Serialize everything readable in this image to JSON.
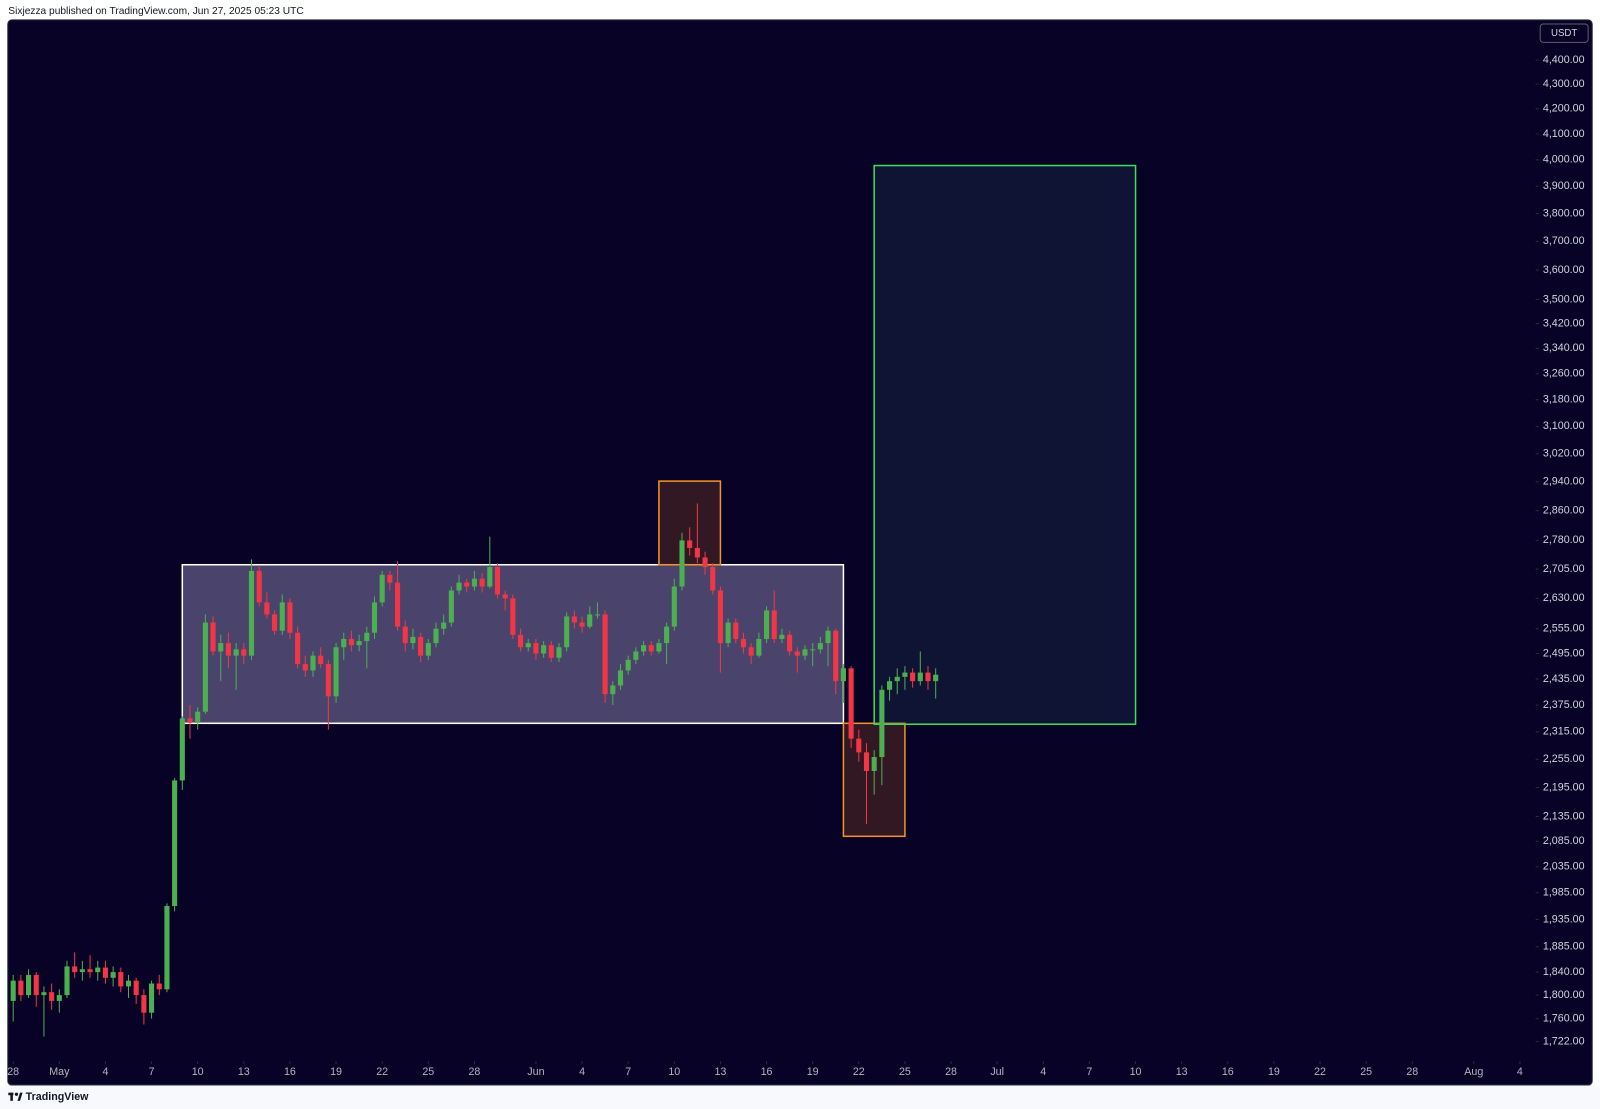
{
  "header": {
    "text": "Sixjezza published on TradingView.com, Jun 27, 2025 05:23 UTC"
  },
  "footer": {
    "brand": "TradingView"
  },
  "chart_data": {
    "type": "candlestick",
    "currency": "USDT",
    "log": true,
    "up_color": "#4caf50",
    "down_color": "#f23645",
    "ylim": [
      1690,
      4570
    ],
    "yticks": [
      {
        "value": 4400,
        "label": "4,400.00"
      },
      {
        "value": 4300,
        "label": "4,300.00"
      },
      {
        "value": 4200,
        "label": "4,200.00"
      },
      {
        "value": 4100,
        "label": "4,100.00"
      },
      {
        "value": 4000,
        "label": "4,000.00"
      },
      {
        "value": 3900,
        "label": "3,900.00"
      },
      {
        "value": 3800,
        "label": "3,800.00"
      },
      {
        "value": 3700,
        "label": "3,700.00"
      },
      {
        "value": 3600,
        "label": "3,600.00"
      },
      {
        "value": 3500,
        "label": "3,500.00"
      },
      {
        "value": 3420,
        "label": "3,420.00"
      },
      {
        "value": 3340,
        "label": "3,340.00"
      },
      {
        "value": 3260,
        "label": "3,260.00"
      },
      {
        "value": 3180,
        "label": "3,180.00"
      },
      {
        "value": 3100,
        "label": "3,100.00"
      },
      {
        "value": 3020,
        "label": "3,020.00"
      },
      {
        "value": 2940,
        "label": "2,940.00"
      },
      {
        "value": 2860,
        "label": "2,860.00"
      },
      {
        "value": 2780,
        "label": "2,780.00"
      },
      {
        "value": 2705,
        "label": "2,705.00"
      },
      {
        "value": 2630,
        "label": "2,630.00"
      },
      {
        "value": 2555,
        "label": "2,555.00"
      },
      {
        "value": 2495,
        "label": "2,495.00"
      },
      {
        "value": 2435,
        "label": "2,435.00"
      },
      {
        "value": 2375,
        "label": "2,375.00"
      },
      {
        "value": 2315,
        "label": "2,315.00"
      },
      {
        "value": 2255,
        "label": "2,255.00"
      },
      {
        "value": 2195,
        "label": "2,195.00"
      },
      {
        "value": 2135,
        "label": "2,135.00"
      },
      {
        "value": 2085,
        "label": "2,085.00"
      },
      {
        "value": 2035,
        "label": "2,035.00"
      },
      {
        "value": 1985,
        "label": "1,985.00"
      },
      {
        "value": 1935,
        "label": "1,935.00"
      },
      {
        "value": 1885,
        "label": "1,885.00"
      },
      {
        "value": 1840,
        "label": "1,840.00"
      },
      {
        "value": 1800,
        "label": "1,800.00"
      },
      {
        "value": 1760,
        "label": "1,760.00"
      },
      {
        "value": 1722,
        "label": "1,722.00"
      }
    ],
    "xlim": [
      "04-28",
      "08-05"
    ],
    "xticks": [
      {
        "value": "04-28",
        "label": "28"
      },
      {
        "value": "05-01",
        "label": "May"
      },
      {
        "value": "05-04",
        "label": "4"
      },
      {
        "value": "05-07",
        "label": "7"
      },
      {
        "value": "05-10",
        "label": "10"
      },
      {
        "value": "05-13",
        "label": "13"
      },
      {
        "value": "05-16",
        "label": "16"
      },
      {
        "value": "05-19",
        "label": "19"
      },
      {
        "value": "05-22",
        "label": "22"
      },
      {
        "value": "05-25",
        "label": "25"
      },
      {
        "value": "05-28",
        "label": "28"
      },
      {
        "value": "06-01",
        "label": "Jun"
      },
      {
        "value": "06-04",
        "label": "4"
      },
      {
        "value": "06-07",
        "label": "7"
      },
      {
        "value": "06-10",
        "label": "10"
      },
      {
        "value": "06-13",
        "label": "13"
      },
      {
        "value": "06-16",
        "label": "16"
      },
      {
        "value": "06-19",
        "label": "19"
      },
      {
        "value": "06-22",
        "label": "22"
      },
      {
        "value": "06-25",
        "label": "25"
      },
      {
        "value": "06-28",
        "label": "28"
      },
      {
        "value": "07-01",
        "label": "Jul"
      },
      {
        "value": "07-04",
        "label": "4"
      },
      {
        "value": "07-07",
        "label": "7"
      },
      {
        "value": "07-10",
        "label": "10"
      },
      {
        "value": "07-13",
        "label": "13"
      },
      {
        "value": "07-16",
        "label": "16"
      },
      {
        "value": "07-19",
        "label": "19"
      },
      {
        "value": "07-22",
        "label": "22"
      },
      {
        "value": "07-25",
        "label": "25"
      },
      {
        "value": "07-28",
        "label": "28"
      },
      {
        "value": "08-01",
        "label": "Aug"
      },
      {
        "value": "08-04",
        "label": "4"
      }
    ],
    "zones": [
      {
        "x": [
          "05-09",
          "06-21"
        ],
        "y": [
          2334,
          2716
        ],
        "color": "#ffffff",
        "fill": "rgba(185,175,225,0.38)"
      },
      {
        "x": [
          "06-09",
          "06-13"
        ],
        "y": [
          2716,
          2942
        ],
        "color": "#f0932b",
        "fill": "rgba(140,70,30,0.32)"
      },
      {
        "x": [
          "06-21",
          "06-25"
        ],
        "y": [
          2095,
          2334
        ],
        "color": "#f0932b",
        "fill": "rgba(140,70,30,0.32)"
      },
      {
        "x": [
          "06-23",
          "07-10"
        ],
        "y": [
          2332,
          3978
        ],
        "color": "#3ddc5a",
        "fill": "rgba(40,70,90,0.28)"
      }
    ],
    "candles": [
      [
        1790,
        1835,
        1755,
        1825
      ],
      [
        1825,
        1835,
        1790,
        1800
      ],
      [
        1800,
        1845,
        1795,
        1835
      ],
      [
        1835,
        1840,
        1780,
        1800
      ],
      [
        1800,
        1815,
        1730,
        1805
      ],
      [
        1805,
        1820,
        1775,
        1790
      ],
      [
        1790,
        1810,
        1770,
        1800
      ],
      [
        1800,
        1860,
        1795,
        1850
      ],
      [
        1850,
        1875,
        1830,
        1840
      ],
      [
        1840,
        1860,
        1825,
        1845
      ],
      [
        1845,
        1870,
        1830,
        1840
      ],
      [
        1840,
        1860,
        1825,
        1848
      ],
      [
        1848,
        1860,
        1820,
        1830
      ],
      [
        1830,
        1850,
        1815,
        1840
      ],
      [
        1840,
        1848,
        1805,
        1815
      ],
      [
        1815,
        1835,
        1795,
        1825
      ],
      [
        1825,
        1830,
        1785,
        1800
      ],
      [
        1800,
        1810,
        1750,
        1770
      ],
      [
        1770,
        1825,
        1760,
        1820
      ],
      [
        1820,
        1835,
        1800,
        1810
      ],
      [
        1810,
        1965,
        1805,
        1960
      ],
      [
        1960,
        2215,
        1950,
        2210
      ],
      [
        2210,
        2350,
        2190,
        2345
      ],
      [
        2345,
        2375,
        2300,
        2335
      ],
      [
        2335,
        2370,
        2320,
        2360
      ],
      [
        2360,
        2590,
        2355,
        2570
      ],
      [
        2570,
        2585,
        2490,
        2500
      ],
      [
        2500,
        2540,
        2430,
        2520
      ],
      [
        2520,
        2545,
        2460,
        2490
      ],
      [
        2490,
        2520,
        2410,
        2505
      ],
      [
        2505,
        2520,
        2470,
        2490
      ],
      [
        2490,
        2730,
        2480,
        2700
      ],
      [
        2700,
        2715,
        2610,
        2620
      ],
      [
        2620,
        2645,
        2580,
        2590
      ],
      [
        2590,
        2600,
        2540,
        2550
      ],
      [
        2550,
        2640,
        2540,
        2620
      ],
      [
        2620,
        2630,
        2530,
        2545
      ],
      [
        2545,
        2560,
        2460,
        2470
      ],
      [
        2470,
        2490,
        2440,
        2455
      ],
      [
        2455,
        2500,
        2440,
        2490
      ],
      [
        2490,
        2510,
        2460,
        2470
      ],
      [
        2470,
        2480,
        2320,
        2395
      ],
      [
        2395,
        2520,
        2380,
        2510
      ],
      [
        2510,
        2545,
        2480,
        2530
      ],
      [
        2530,
        2550,
        2500,
        2515
      ],
      [
        2515,
        2540,
        2500,
        2525
      ],
      [
        2525,
        2560,
        2460,
        2545
      ],
      [
        2545,
        2635,
        2530,
        2620
      ],
      [
        2620,
        2700,
        2610,
        2690
      ],
      [
        2690,
        2700,
        2650,
        2670
      ],
      [
        2670,
        2725,
        2550,
        2560
      ],
      [
        2560,
        2575,
        2500,
        2520
      ],
      [
        2520,
        2555,
        2505,
        2535
      ],
      [
        2535,
        2545,
        2475,
        2490
      ],
      [
        2490,
        2530,
        2480,
        2520
      ],
      [
        2520,
        2570,
        2510,
        2555
      ],
      [
        2555,
        2590,
        2540,
        2570
      ],
      [
        2570,
        2660,
        2560,
        2650
      ],
      [
        2650,
        2690,
        2640,
        2670
      ],
      [
        2670,
        2680,
        2645,
        2660
      ],
      [
        2660,
        2700,
        2650,
        2680
      ],
      [
        2680,
        2695,
        2645,
        2660
      ],
      [
        2660,
        2790,
        2655,
        2710
      ],
      [
        2710,
        2720,
        2630,
        2640
      ],
      [
        2640,
        2650,
        2600,
        2630
      ],
      [
        2630,
        2640,
        2530,
        2540
      ],
      [
        2540,
        2555,
        2500,
        2510
      ],
      [
        2510,
        2530,
        2500,
        2520
      ],
      [
        2520,
        2530,
        2480,
        2495
      ],
      [
        2495,
        2525,
        2485,
        2515
      ],
      [
        2515,
        2525,
        2475,
        2485
      ],
      [
        2485,
        2520,
        2475,
        2510
      ],
      [
        2510,
        2595,
        2500,
        2585
      ],
      [
        2585,
        2600,
        2555,
        2570
      ],
      [
        2570,
        2585,
        2545,
        2560
      ],
      [
        2560,
        2610,
        2555,
        2590
      ],
      [
        2590,
        2620,
        2580,
        2590
      ],
      [
        2590,
        2600,
        2380,
        2400
      ],
      [
        2400,
        2430,
        2375,
        2420
      ],
      [
        2420,
        2470,
        2410,
        2455
      ],
      [
        2455,
        2490,
        2445,
        2480
      ],
      [
        2480,
        2510,
        2470,
        2500
      ],
      [
        2500,
        2525,
        2490,
        2515
      ],
      [
        2515,
        2525,
        2490,
        2500
      ],
      [
        2500,
        2530,
        2495,
        2520
      ],
      [
        2520,
        2570,
        2470,
        2560
      ],
      [
        2560,
        2680,
        2550,
        2660
      ],
      [
        2660,
        2800,
        2650,
        2780
      ],
      [
        2780,
        2815,
        2740,
        2760
      ],
      [
        2760,
        2880,
        2720,
        2735
      ],
      [
        2735,
        2750,
        2690,
        2710
      ],
      [
        2710,
        2720,
        2640,
        2650
      ],
      [
        2650,
        2660,
        2450,
        2520
      ],
      [
        2520,
        2580,
        2510,
        2570
      ],
      [
        2570,
        2580,
        2520,
        2530
      ],
      [
        2530,
        2545,
        2495,
        2510
      ],
      [
        2510,
        2520,
        2470,
        2490
      ],
      [
        2490,
        2545,
        2485,
        2530
      ],
      [
        2530,
        2610,
        2520,
        2600
      ],
      [
        2600,
        2650,
        2520,
        2530
      ],
      [
        2530,
        2555,
        2520,
        2540
      ],
      [
        2540,
        2550,
        2490,
        2500
      ],
      [
        2500,
        2510,
        2450,
        2490
      ],
      [
        2490,
        2515,
        2480,
        2505
      ],
      [
        2505,
        2520,
        2465,
        2505
      ],
      [
        2505,
        2535,
        2495,
        2520
      ],
      [
        2520,
        2560,
        2465,
        2550
      ],
      [
        2550,
        2555,
        2400,
        2430
      ],
      [
        2430,
        2470,
        2380,
        2460
      ],
      [
        2460,
        2465,
        2280,
        2300
      ],
      [
        2300,
        2320,
        2250,
        2270
      ],
      [
        2270,
        2290,
        2120,
        2230
      ],
      [
        2230,
        2275,
        2180,
        2260
      ],
      [
        2260,
        2420,
        2200,
        2410
      ],
      [
        2410,
        2440,
        2385,
        2430
      ],
      [
        2430,
        2460,
        2400,
        2440
      ],
      [
        2440,
        2465,
        2410,
        2450
      ],
      [
        2450,
        2460,
        2415,
        2430
      ],
      [
        2430,
        2500,
        2420,
        2450
      ],
      [
        2450,
        2465,
        2410,
        2430
      ],
      [
        2430,
        2460,
        2390,
        2445
      ]
    ]
  }
}
